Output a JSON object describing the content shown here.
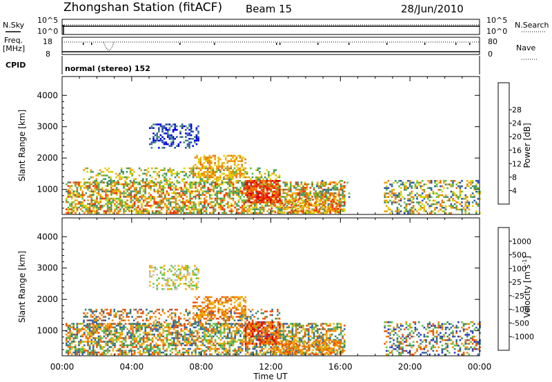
{
  "header": {
    "title": "Zhongshan Station (fitACF)",
    "beam": "Beam 15",
    "date": "28/Jun/2010"
  },
  "strip_labels": {
    "nsky": "N.Sky",
    "nsky_ticks": [
      "10^5",
      "10^0"
    ],
    "nsearch": "N.Search",
    "nsearch_ticks": [
      "10^5",
      "10^0"
    ],
    "freq": "Freq.",
    "freq_unit": "[MHz]",
    "freq_ticks": [
      "18",
      "8"
    ],
    "nave": "Nave",
    "nave_ticks": [
      "80",
      "0"
    ],
    "cpid": "CPID",
    "cpid_value": "normal (stereo) 152"
  },
  "colorbars": {
    "power": {
      "label": "Power [dB]",
      "ticks": [
        "4",
        "8",
        "12",
        "16",
        "20",
        "24",
        "28"
      ],
      "colors": [
        "#0000ee",
        "#2a4fb0",
        "#3f8d6c",
        "#5cb83c",
        "#e0d000",
        "#f0a000",
        "#f07000",
        "#f03000",
        "#e00000"
      ]
    },
    "velocity": {
      "label_prefix": "Velocity [m s",
      "label_sup": "-1",
      "label_suffix": "]",
      "ticks": [
        "1000",
        "500",
        "100",
        "25",
        "-25",
        "-100",
        "-500",
        "-1000"
      ],
      "colors": [
        "#2a38c8",
        "#3262a8",
        "#3a8860",
        "#5cc43c",
        "#c0c0c0",
        "#f0b000",
        "#f08c00",
        "#f05000",
        "#e00000"
      ]
    }
  },
  "chart_data": [
    {
      "type": "heatmap",
      "name": "power",
      "ylabel": "Slant Range [km]",
      "yticks": [
        1000,
        2000,
        3000,
        4000
      ],
      "ylim": [
        200,
        4600
      ],
      "xlim": [
        0,
        24
      ],
      "scatter_regions": [
        {
          "t": [
            0.2,
            16.2
          ],
          "r": [
            250,
            1250
          ],
          "density": 0.6,
          "palette": [
            5,
            6,
            7,
            3,
            4,
            2
          ]
        },
        {
          "t": [
            1.2,
            12.5
          ],
          "r": [
            1200,
            1700
          ],
          "density": 0.35,
          "palette": [
            3,
            4,
            5,
            2
          ]
        },
        {
          "t": [
            5.0,
            7.8
          ],
          "r": [
            2300,
            3100
          ],
          "density": 0.35,
          "palette": [
            1,
            2,
            0
          ]
        },
        {
          "t": [
            7.5,
            10.5
          ],
          "r": [
            1400,
            2100
          ],
          "density": 0.45,
          "palette": [
            5,
            6,
            4
          ]
        },
        {
          "t": [
            10.5,
            12.5
          ],
          "r": [
            600,
            1300
          ],
          "density": 0.65,
          "palette": [
            7,
            8,
            6
          ]
        },
        {
          "t": [
            12.0,
            16.0
          ],
          "r": [
            250,
            700
          ],
          "density": 0.45,
          "palette": [
            6,
            7,
            5,
            4
          ]
        },
        {
          "t": [
            14.5,
            16.5
          ],
          "r": [
            700,
            1300
          ],
          "density": 0.15,
          "palette": [
            1,
            2,
            3
          ]
        },
        {
          "t": [
            18.5,
            24.0
          ],
          "r": [
            250,
            1300
          ],
          "density": 0.4,
          "palette": [
            2,
            3,
            4,
            5,
            6,
            1
          ]
        }
      ]
    },
    {
      "type": "heatmap",
      "name": "velocity",
      "ylabel": "Slant Range [km]",
      "yticks": [
        1000,
        2000,
        3000,
        4000
      ],
      "ylim": [
        200,
        4600
      ],
      "xlim": [
        0,
        24
      ],
      "xticks": [
        "00:00",
        "04:00",
        "08:00",
        "12:00",
        "16:00",
        "20:00",
        "00:00"
      ],
      "xlabel": "Time UT",
      "scatter_regions": [
        {
          "t": [
            0.2,
            16.2
          ],
          "r": [
            250,
            1250
          ],
          "density": 0.6,
          "palette": [
            6,
            7,
            5,
            3,
            1,
            2
          ]
        },
        {
          "t": [
            1.2,
            12.5
          ],
          "r": [
            1200,
            1700
          ],
          "density": 0.35,
          "palette": [
            6,
            7,
            1,
            2
          ]
        },
        {
          "t": [
            5.0,
            7.8
          ],
          "r": [
            2300,
            3100
          ],
          "density": 0.35,
          "palette": [
            4,
            5,
            3
          ]
        },
        {
          "t": [
            7.5,
            10.5
          ],
          "r": [
            1400,
            2100
          ],
          "density": 0.45,
          "palette": [
            6,
            7,
            5
          ]
        },
        {
          "t": [
            10.5,
            12.5
          ],
          "r": [
            600,
            1300
          ],
          "density": 0.6,
          "palette": [
            6,
            7,
            8
          ]
        },
        {
          "t": [
            12.0,
            16.0
          ],
          "r": [
            250,
            700
          ],
          "density": 0.45,
          "palette": [
            6,
            7,
            5
          ]
        },
        {
          "t": [
            18.5,
            24.0
          ],
          "r": [
            250,
            1300
          ],
          "density": 0.4,
          "palette": [
            1,
            2,
            3,
            6,
            7,
            0
          ]
        }
      ]
    }
  ]
}
